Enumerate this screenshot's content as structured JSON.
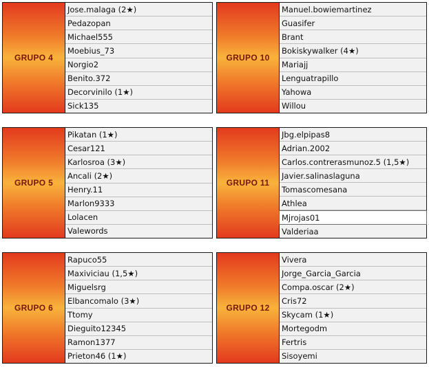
{
  "groups": [
    {
      "title": "GRUPO 4",
      "players": [
        "Jose.malaga (2★)",
        "Pedazopan",
        "Michael555",
        "Moebius_73",
        "Norgio2",
        "Benito.372",
        "Decorvinilo (1★)",
        "Sick135"
      ]
    },
    {
      "title": "GRUPO 10",
      "players": [
        "Manuel.bowiemartinez",
        "Guasifer",
        "Brant",
        "Bokiskywalker (4★)",
        "Mariajj",
        "Lenguatrapillo",
        "Yahowa",
        "Willou"
      ]
    },
    {
      "title": "GRUPO 5",
      "players": [
        "Pikatan (1★)",
        "Cesar121",
        "Karlosroa (3★)",
        "Ancali (2★)",
        "Henry.11",
        "Marlon9333",
        "Lolacen",
        "Valewords"
      ]
    },
    {
      "title": "GRUPO 11",
      "players": [
        "Jbg.elpipas8",
        "Adrian.2002",
        "Carlos.contrerasmunoz.5 (1,5★)",
        "Javier.salinaslaguna",
        "Tomascomesana",
        "Athlea",
        "Mjrojas01",
        "Valderiaa"
      ]
    },
    {
      "title": "GRUPO 6",
      "players": [
        "Rapuco55",
        "Maxiviciau (1,5★)",
        "Miguelsrg",
        "Elbancomalo (3★)",
        "Ttomy",
        "Dieguito12345",
        "Ramon1377",
        "Prieton46 (1★)"
      ]
    },
    {
      "title": "GRUPO 12",
      "players": [
        "Vivera",
        "Jorge_Garcia_Garcia",
        "Compa.oscar (2★)",
        "Cris72",
        "Skycam (1★)",
        "Mortegodm",
        "Fertris",
        "Sisoyemi"
      ]
    }
  ]
}
